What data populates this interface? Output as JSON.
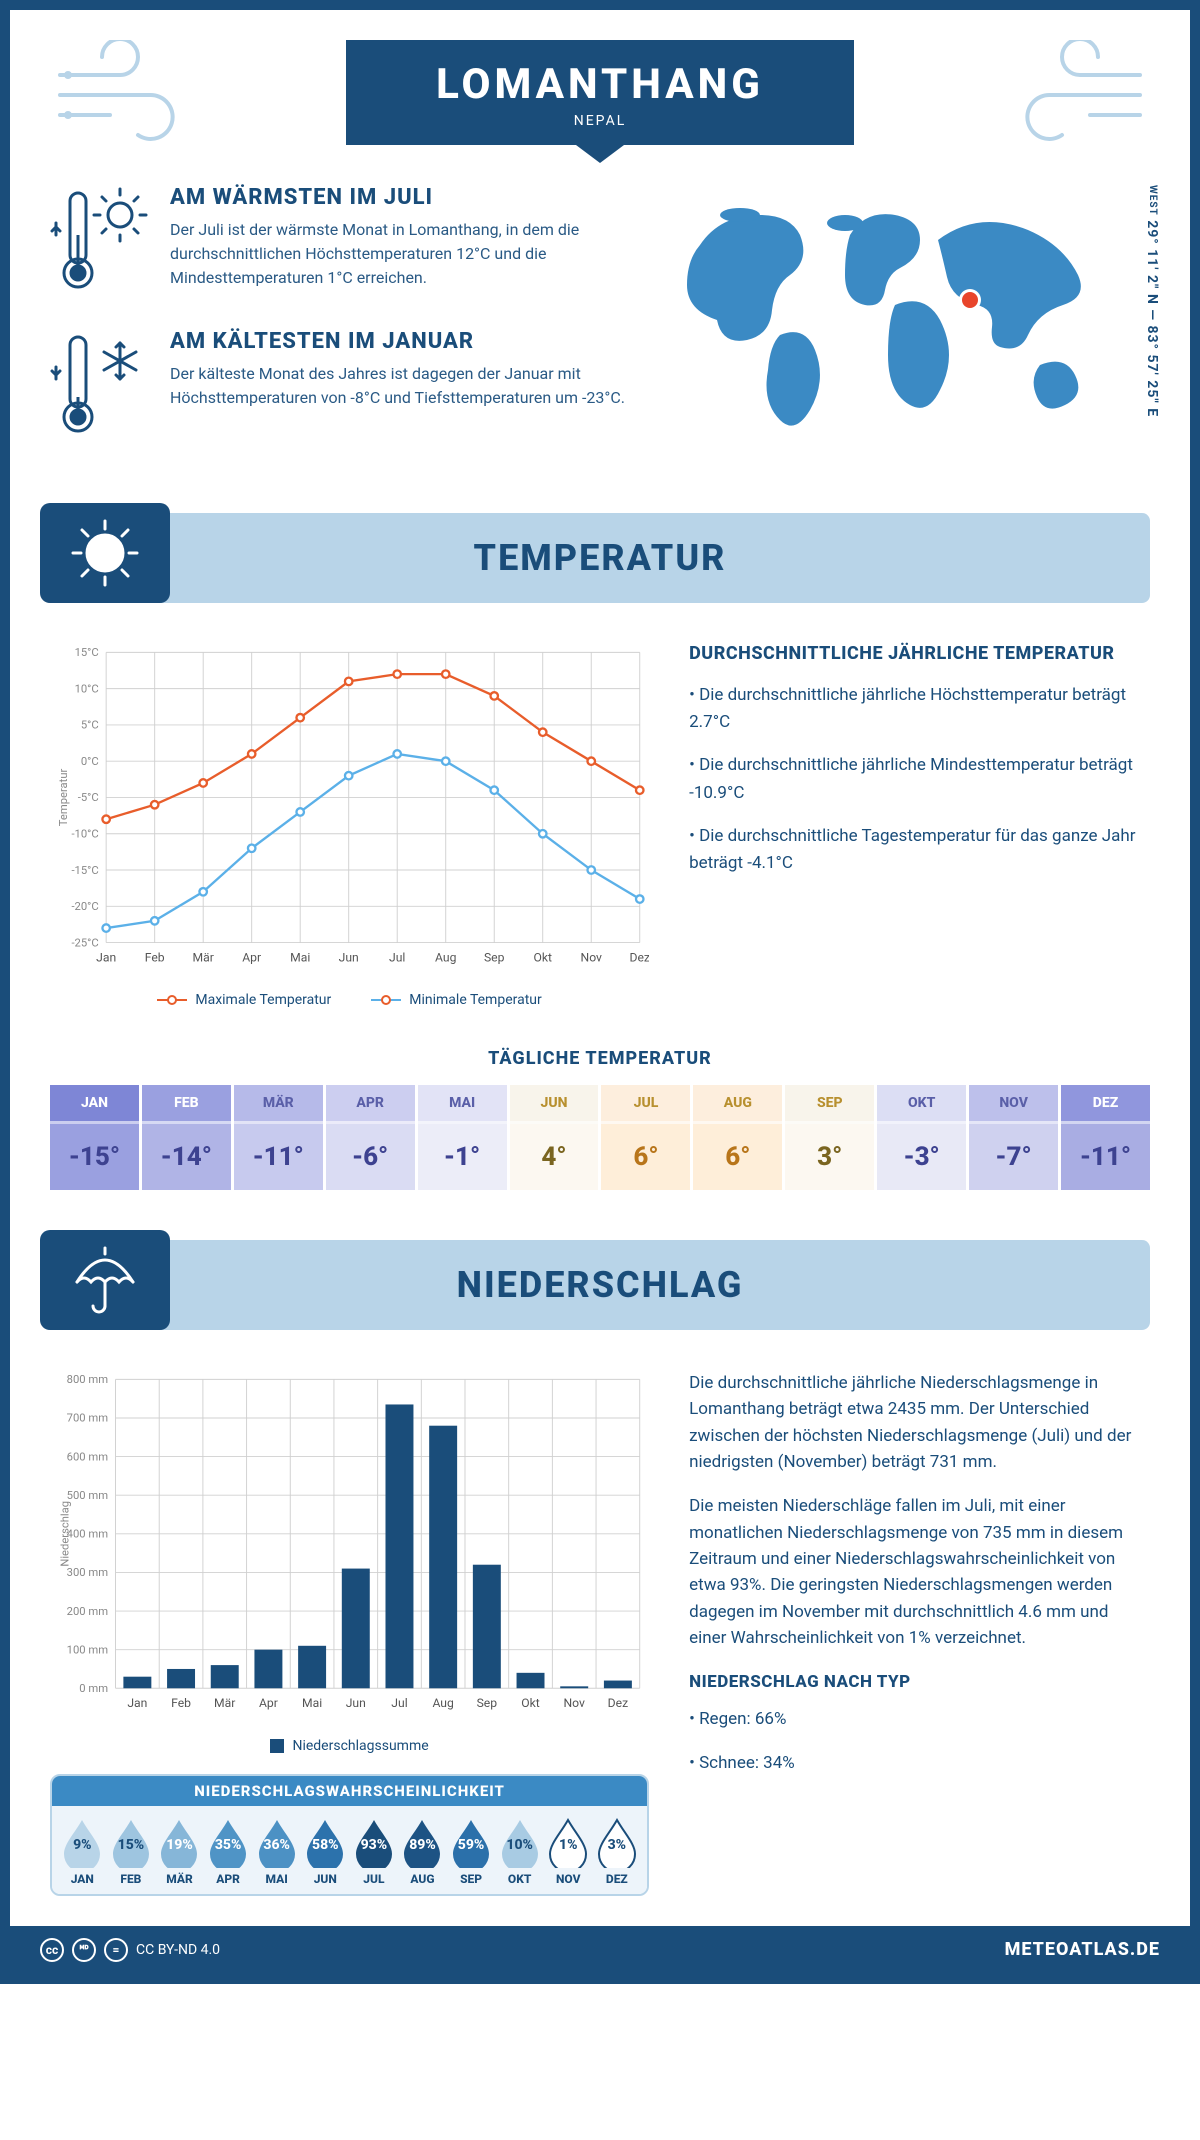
{
  "header": {
    "city": "LOMANTHANG",
    "country": "NEPAL",
    "coords": {
      "dir": "WEST",
      "value": "29° 11' 2\" N — 83° 57' 25\" E"
    }
  },
  "facts": {
    "warm": {
      "title": "AM WÄRMSTEN IM JULI",
      "text": "Der Juli ist der wärmste Monat in Lomanthang, in dem die durchschnittlichen Höchsttemperaturen 12°C und die Mindesttemperaturen 1°C erreichen."
    },
    "cold": {
      "title": "AM KÄLTESTEN IM JANUAR",
      "text": "Der kälteste Monat des Jahres ist dagegen der Januar mit Höchsttemperaturen von -8°C und Tiefsttemperaturen um -23°C."
    }
  },
  "sections": {
    "temp": "TEMPERATUR",
    "precip": "NIEDERSCHLAG"
  },
  "temp_chart": {
    "type": "line",
    "months": [
      "Jan",
      "Feb",
      "Mär",
      "Apr",
      "Mai",
      "Jun",
      "Jul",
      "Aug",
      "Sep",
      "Okt",
      "Nov",
      "Dez"
    ],
    "max_values": [
      -8,
      -6,
      -3,
      1,
      6,
      11,
      12,
      12,
      9,
      4,
      0,
      -4
    ],
    "min_values": [
      -23,
      -22,
      -18,
      -12,
      -7,
      -2,
      1,
      0,
      -4,
      -10,
      -15,
      -19
    ],
    "max_color": "#e85d2b",
    "min_color": "#5bb0e8",
    "grid_color": "#d0d0d0",
    "bg": "#ffffff",
    "ylim": [
      -25,
      15
    ],
    "ytick_step": 5,
    "ytick_suffix": "°C",
    "y_axis_label": "Temperatur",
    "legend": {
      "max": "Maximale Temperatur",
      "min": "Minimale Temperatur"
    },
    "info": {
      "title": "DURCHSCHNITTLICHE JÄHRLICHE TEMPERATUR",
      "b1": "• Die durchschnittliche jährliche Höchsttemperatur beträgt 2.7°C",
      "b2": "• Die durchschnittliche jährliche Mindesttemperatur beträgt -10.9°C",
      "b3": "• Die durchschnittliche Tagestemperatur für das ganze Jahr beträgt -4.1°C"
    }
  },
  "daily": {
    "title": "TÄGLICHE TEMPERATUR",
    "months": [
      "JAN",
      "FEB",
      "MÄR",
      "APR",
      "MAI",
      "JUN",
      "JUL",
      "AUG",
      "SEP",
      "OKT",
      "NOV",
      "DEZ"
    ],
    "values": [
      "-15°",
      "-14°",
      "-11°",
      "-6°",
      "-1°",
      "4°",
      "6°",
      "6°",
      "3°",
      "-3°",
      "-7°",
      "-11°"
    ],
    "head_bg": [
      "#7e86d6",
      "#9aa0e0",
      "#b6bae9",
      "#cccef0",
      "#e2e3f6",
      "#f8f4eb",
      "#fdeedd",
      "#fdeedd",
      "#f8f4eb",
      "#dcdef4",
      "#bdc0eb",
      "#9096dd"
    ],
    "val_bg": [
      "#9aa0e0",
      "#b0b4e6",
      "#c7caee",
      "#dadcf3",
      "#ecedf8",
      "#fcf8f1",
      "#feeed9",
      "#feeed9",
      "#fcf8f1",
      "#e8e9f6",
      "#cfd1ef",
      "#a9ade3"
    ],
    "head_fg": [
      "#fff",
      "#fff",
      "#5a5fa8",
      "#5a5fa8",
      "#5a5fa8",
      "#b8902f",
      "#b8902f",
      "#b8902f",
      "#b8902f",
      "#5a5fa8",
      "#5a5fa8",
      "#fff"
    ],
    "val_fg": [
      "#3d4290",
      "#3d4290",
      "#3d4290",
      "#3d4290",
      "#3d4290",
      "#7a6520",
      "#b8751a",
      "#b8751a",
      "#7a6520",
      "#3d4290",
      "#3d4290",
      "#3d4290"
    ]
  },
  "precip_chart": {
    "type": "bar",
    "months": [
      "Jan",
      "Feb",
      "Mär",
      "Apr",
      "Mai",
      "Jun",
      "Jul",
      "Aug",
      "Sep",
      "Okt",
      "Nov",
      "Dez"
    ],
    "values": [
      30,
      50,
      60,
      100,
      110,
      310,
      735,
      680,
      320,
      40,
      5,
      20
    ],
    "bar_color": "#1a4d7a",
    "grid_color": "#d0d0d0",
    "ylim": [
      0,
      800
    ],
    "ytick_step": 100,
    "ytick_suffix": " mm",
    "y_axis_label": "Niederschlag",
    "legend": "Niederschlagssumme"
  },
  "precip_info": {
    "p1": "Die durchschnittliche jährliche Niederschlagsmenge in Lomanthang beträgt etwa 2435 mm. Der Unterschied zwischen der höchsten Niederschlagsmenge (Juli) und der niedrigsten (November) beträgt 731 mm.",
    "p2": "Die meisten Niederschläge fallen im Juli, mit einer monatlichen Niederschlagsmenge von 735 mm in diesem Zeitraum und einer Niederschlagswahrscheinlichkeit von etwa 93%. Die geringsten Niederschlagsmengen werden dagegen im November mit durchschnittlich 4.6 mm und einer Wahrscheinlichkeit von 1% verzeichnet.",
    "type_title": "NIEDERSCHLAG NACH TYP",
    "rain": "• Regen: 66%",
    "snow": "• Schnee: 34%"
  },
  "probability": {
    "title": "NIEDERSCHLAGSWAHRSCHEINLICHKEIT",
    "months": [
      "JAN",
      "FEB",
      "MÄR",
      "APR",
      "MAI",
      "JUN",
      "JUL",
      "AUG",
      "SEP",
      "OKT",
      "NOV",
      "DEZ"
    ],
    "values": [
      "9%",
      "15%",
      "19%",
      "35%",
      "36%",
      "58%",
      "93%",
      "89%",
      "59%",
      "10%",
      "1%",
      "3%"
    ],
    "fill": [
      "#b8d4e8",
      "#9ec5e0",
      "#86b6d8",
      "#4f94c6",
      "#4c91c4",
      "#2c72ac",
      "#1a4d7a",
      "#1d5384",
      "#2b70aa",
      "#a8cbe3",
      "#ffffff",
      "#ffffff"
    ],
    "text": [
      "#1a4d7a",
      "#1a4d7a",
      "#fff",
      "#fff",
      "#fff",
      "#fff",
      "#fff",
      "#fff",
      "#fff",
      "#1a4d7a",
      "#1a4d7a",
      "#1a4d7a"
    ]
  },
  "footer": {
    "license": "CC BY-ND 4.0",
    "brand": "METEOATLAS.DE"
  }
}
